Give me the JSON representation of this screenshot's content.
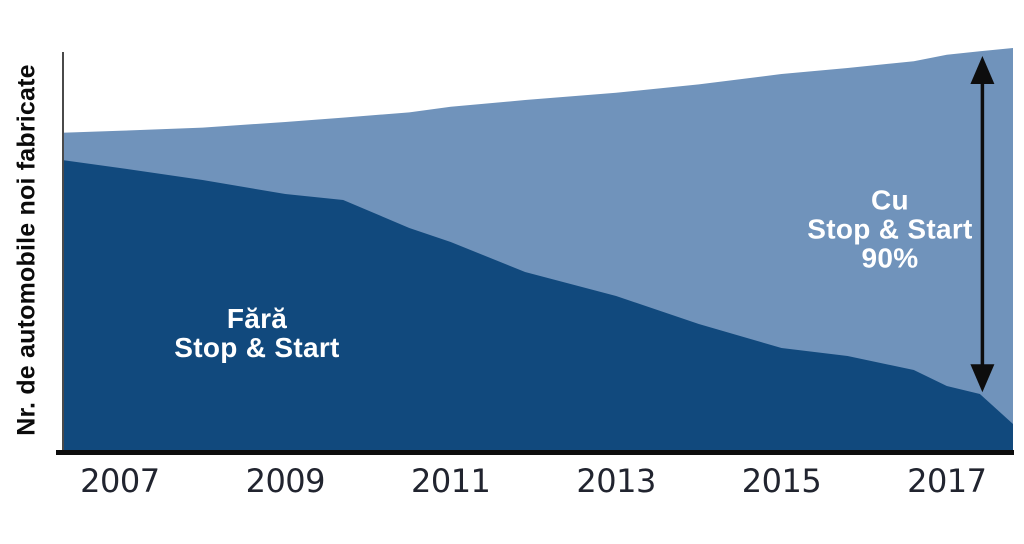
{
  "chart": {
    "y_axis_title": "Nr. de automobile noi fabricate",
    "x_ticks": [
      2007,
      2009,
      2011,
      2013,
      2015,
      2017
    ],
    "labels": {
      "fara": {
        "line1": "Fără",
        "line2": "Stop & Start"
      },
      "cu": {
        "line1": "Cu",
        "line2": "Stop & Start",
        "line3": "90%"
      }
    },
    "colors": {
      "fara_area": "#11497d",
      "cu_area": "#7093bb",
      "axis": "#0d0d0d",
      "y_axis_line": "#4a4a4a",
      "tick_text": "#21242f",
      "label_text": "#ffffff",
      "arrow": "#0d0d0d"
    }
  },
  "chart_data": {
    "type": "area",
    "stacked": true,
    "title": "",
    "xlabel": "",
    "ylabel": "Nr. de automobile noi fabricate",
    "legend_position": "none",
    "grid": false,
    "y_axis_numeric": false,
    "units_note": "relative number of newly manufactured cars (no numeric scale shown); values estimated from pixel heights, 100 = right-edge total",
    "x_range": [
      2006.3,
      2017.8
    ],
    "x_tick_labels": [
      "2007",
      "2009",
      "2011",
      "2013",
      "2015",
      "2017"
    ],
    "x": [
      2006.3,
      2007,
      2008,
      2009,
      2009.7,
      2010.5,
      2011,
      2011.9,
      2013,
      2014,
      2015,
      2015.8,
      2016.6,
      2017,
      2017.4,
      2017.8
    ],
    "series": [
      {
        "name": "Fără Stop & Start",
        "color": "#11497d",
        "values": [
          73,
          71,
          68,
          64.5,
          63,
          56,
          52.5,
          45,
          39,
          32,
          26,
          24,
          20.5,
          16.5,
          14.5,
          7
        ]
      },
      {
        "name": "Cu Stop & Start",
        "color": "#7093bb",
        "values": [
          6.8,
          9.3,
          13.1,
          18,
          20.6,
          28.9,
          33.8,
          43,
          50.8,
          59.9,
          68.5,
          72,
          77.2,
          82.8,
          85.7,
          94
        ]
      }
    ],
    "annotations": [
      {
        "type": "double_arrow",
        "x_year": 2017.43,
        "meaning": "span of Cu Stop & Start share at right edge"
      },
      {
        "type": "text",
        "text": "Fără Stop & Start",
        "area": "fara"
      },
      {
        "type": "text",
        "text": "Cu Stop & Start 90%",
        "area": "cu"
      }
    ]
  }
}
